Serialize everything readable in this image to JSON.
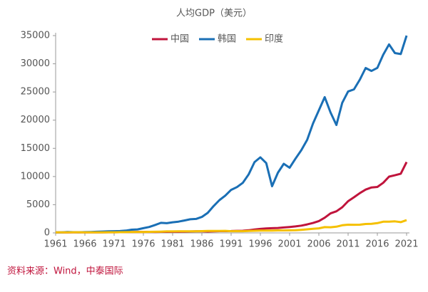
{
  "chart_data": {
    "type": "line",
    "title": "人均GDP（美元）",
    "source": "资料来源：Wind，中泰国际",
    "x": [
      1961,
      1962,
      1963,
      1964,
      1965,
      1966,
      1967,
      1968,
      1969,
      1970,
      1971,
      1972,
      1973,
      1974,
      1975,
      1976,
      1977,
      1978,
      1979,
      1980,
      1981,
      1982,
      1983,
      1984,
      1985,
      1986,
      1987,
      1988,
      1989,
      1990,
      1991,
      1992,
      1993,
      1994,
      1995,
      1996,
      1997,
      1998,
      1999,
      2000,
      2001,
      2002,
      2003,
      2004,
      2005,
      2006,
      2007,
      2008,
      2009,
      2010,
      2011,
      2012,
      2013,
      2014,
      2015,
      2016,
      2017,
      2018,
      2019,
      2020,
      2021
    ],
    "series": [
      {
        "name": "中国",
        "color": "#c0143c",
        "values": [
          76,
          70,
          74,
          85,
          98,
          104,
          96,
          91,
          100,
          113,
          119,
          132,
          157,
          160,
          178,
          165,
          185,
          156,
          184,
          195,
          197,
          203,
          225,
          251,
          294,
          282,
          252,
          284,
          311,
          318,
          333,
          366,
          377,
          473,
          610,
          709,
          782,
          829,
          873,
          959,
          1053,
          1149,
          1289,
          1509,
          1753,
          2099,
          2694,
          3468,
          3832,
          4550,
          5618,
          6317,
          7051,
          7679,
          8067,
          8148,
          8879,
          9977,
          10217,
          10500,
          12556
        ]
      },
      {
        "name": "韩国",
        "color": "#1a6fb5",
        "values": [
          94,
          106,
          146,
          124,
          108,
          133,
          161,
          198,
          243,
          279,
          301,
          323,
          406,
          563,
          617,
          834,
          1055,
          1405,
          1783,
          1715,
          1883,
          1992,
          2199,
          2413,
          2482,
          2835,
          3555,
          4749,
          5817,
          6610,
          7637,
          8127,
          8885,
          10385,
          12565,
          13403,
          12398,
          8282,
          10672,
          12257,
          11561,
          13165,
          14673,
          16496,
          19403,
          21744,
          24086,
          21350,
          19143,
          23087,
          25100,
          25459,
          27180,
          29250,
          28737,
          29274,
          31601,
          33447,
          31902,
          31728,
          34998
        ]
      },
      {
        "name": "印度",
        "color": "#f5c000",
        "values": [
          86,
          91,
          101,
          116,
          119,
          90,
          96,
          99,
          107,
          112,
          119,
          122,
          143,
          163,
          158,
          161,
          186,
          206,
          224,
          267,
          271,
          274,
          292,
          277,
          296,
          310,
          340,
          355,
          347,
          368,
          303,
          317,
          301,
          346,
          374,
          400,
          415,
          413,
          442,
          443,
          452,
          471,
          547,
          628,
          714,
          806,
          1028,
          999,
          1102,
          1358,
          1458,
          1444,
          1450,
          1574,
          1606,
          1733,
          1981,
          1997,
          2050,
          1913,
          2257
        ]
      }
    ],
    "xlim": [
      1961,
      2021
    ],
    "xticks": [
      1961,
      1966,
      1971,
      1976,
      1981,
      1986,
      1991,
      1996,
      2001,
      2006,
      2011,
      2016,
      2021
    ],
    "ylim": [
      0,
      35000
    ],
    "yticks": [
      0,
      5000,
      10000,
      15000,
      20000,
      25000,
      30000,
      35000
    ],
    "grid": false
  }
}
